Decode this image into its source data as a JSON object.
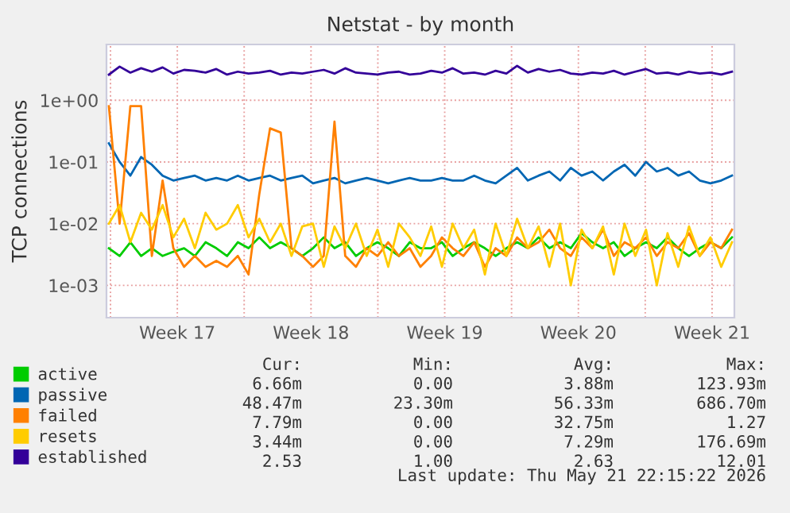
{
  "chart_data": {
    "type": "line",
    "title": "Netstat - by month",
    "ylabel": "TCP connections",
    "log": "y",
    "grid": true,
    "legend": "bottom",
    "marker": "none",
    "line_style": "solid",
    "x": [
      "2026-04-19T22:00",
      "2026-04-20T11:30",
      "2026-04-21T01:00",
      "2026-04-21T14:30",
      "2026-04-22T04:00",
      "2026-04-22T17:30",
      "2026-04-23T07:00",
      "2026-04-23T20:30",
      "2026-04-24T10:00",
      "2026-04-24T23:30",
      "2026-04-25T13:00",
      "2026-04-26T02:30",
      "2026-04-26T16:00",
      "2026-04-27T05:30",
      "2026-04-27T19:00",
      "2026-04-28T08:30",
      "2026-04-28T22:00",
      "2026-04-29T11:30",
      "2026-04-30T01:00",
      "2026-04-30T14:30",
      "2026-05-01T04:00",
      "2026-05-01T17:30",
      "2026-05-02T07:00",
      "2026-05-02T20:30",
      "2026-05-03T10:00",
      "2026-05-03T23:30",
      "2026-05-04T13:00",
      "2026-05-05T02:30",
      "2026-05-05T16:00",
      "2026-05-06T05:30",
      "2026-05-06T19:00",
      "2026-05-07T08:30",
      "2026-05-07T22:00",
      "2026-05-08T11:30",
      "2026-05-09T01:00",
      "2026-05-09T14:30",
      "2026-05-10T04:00",
      "2026-05-10T17:30",
      "2026-05-11T07:00",
      "2026-05-11T20:30",
      "2026-05-12T10:00",
      "2026-05-12T23:30",
      "2026-05-13T13:00",
      "2026-05-14T02:30",
      "2026-05-14T16:00",
      "2026-05-15T05:30",
      "2026-05-15T19:00",
      "2026-05-16T08:30",
      "2026-05-16T22:00",
      "2026-05-17T11:30",
      "2026-05-18T01:00",
      "2026-05-18T14:30",
      "2026-05-19T04:00",
      "2026-05-19T17:30",
      "2026-05-20T07:00",
      "2026-05-20T20:30",
      "2026-05-21T10:00",
      "2026-05-21T23:30",
      "2026-05-22T13:00"
    ],
    "xlim": [
      "2026-04-19T19:00",
      "2026-05-22T16:00"
    ],
    "xticks": [
      {
        "value": "2026-04-20",
        "label": null
      },
      {
        "value": "2026-04-23T12:00",
        "label": "Week 17"
      },
      {
        "value": "2026-04-27",
        "label": null
      },
      {
        "value": "2026-04-30T12:00",
        "label": "Week 18"
      },
      {
        "value": "2026-05-04",
        "label": null
      },
      {
        "value": "2026-05-07T12:00",
        "label": "Week 19"
      },
      {
        "value": "2026-05-11",
        "label": null
      },
      {
        "value": "2026-05-14T12:00",
        "label": "Week 20"
      },
      {
        "value": "2026-05-18",
        "label": null
      },
      {
        "value": "2026-05-21T12:00",
        "label": "Week 21"
      }
    ],
    "ylim": [
      0.0003,
      8
    ],
    "yticks": [
      {
        "value": 0.001,
        "label": "1e-03"
      },
      {
        "value": 0.01,
        "label": "1e-02"
      },
      {
        "value": 0.1,
        "label": "1e-01"
      },
      {
        "value": 1,
        "label": "1e+00"
      }
    ],
    "series": [
      {
        "name": "active",
        "color": "#00cc00",
        "values": [
          0.004,
          0.003,
          0.005,
          0.003,
          0.004,
          0.003,
          0.0035,
          0.004,
          0.003,
          0.005,
          0.004,
          0.003,
          0.005,
          0.004,
          0.006,
          0.004,
          0.005,
          0.004,
          0.003,
          0.004,
          0.006,
          0.004,
          0.005,
          0.003,
          0.004,
          0.005,
          0.004,
          0.003,
          0.005,
          0.004,
          0.004,
          0.005,
          0.003,
          0.004,
          0.005,
          0.004,
          0.003,
          0.004,
          0.005,
          0.004,
          0.006,
          0.004,
          0.005,
          0.004,
          0.007,
          0.005,
          0.004,
          0.005,
          0.003,
          0.004,
          0.005,
          0.004,
          0.006,
          0.004,
          0.003,
          0.004,
          0.005,
          0.004,
          0.006
        ]
      },
      {
        "name": "passive",
        "color": "#0066b3",
        "values": [
          0.2,
          0.1,
          0.06,
          0.12,
          0.09,
          0.06,
          0.05,
          0.055,
          0.06,
          0.05,
          0.055,
          0.05,
          0.06,
          0.05,
          0.055,
          0.06,
          0.05,
          0.055,
          0.06,
          0.045,
          0.05,
          0.055,
          0.045,
          0.05,
          0.055,
          0.05,
          0.045,
          0.05,
          0.055,
          0.05,
          0.05,
          0.055,
          0.05,
          0.05,
          0.06,
          0.05,
          0.045,
          0.06,
          0.08,
          0.05,
          0.06,
          0.07,
          0.05,
          0.08,
          0.06,
          0.07,
          0.05,
          0.07,
          0.09,
          0.06,
          0.1,
          0.07,
          0.08,
          0.06,
          0.07,
          0.05,
          0.045,
          0.05,
          0.06
        ]
      },
      {
        "name": "failed",
        "color": "#ff8000",
        "values": [
          0.8,
          0.01,
          0.8,
          0.8,
          0.003,
          0.05,
          0.004,
          0.002,
          0.003,
          0.002,
          0.0025,
          0.002,
          0.003,
          0.0015,
          0.03,
          0.35,
          0.3,
          0.004,
          0.003,
          0.002,
          0.003,
          0.45,
          0.003,
          0.002,
          0.004,
          0.003,
          0.005,
          0.003,
          0.004,
          0.002,
          0.003,
          0.006,
          0.004,
          0.003,
          0.005,
          0.002,
          0.004,
          0.003,
          0.006,
          0.004,
          0.005,
          0.008,
          0.004,
          0.003,
          0.006,
          0.004,
          0.008,
          0.003,
          0.005,
          0.004,
          0.006,
          0.003,
          0.005,
          0.004,
          0.007,
          0.003,
          0.005,
          0.004,
          0.008
        ]
      },
      {
        "name": "resets",
        "color": "#ffcc00",
        "values": [
          0.01,
          0.02,
          0.005,
          0.015,
          0.008,
          0.02,
          0.006,
          0.012,
          0.004,
          0.015,
          0.008,
          0.01,
          0.02,
          0.006,
          0.012,
          0.005,
          0.01,
          0.003,
          0.009,
          0.01,
          0.002,
          0.009,
          0.004,
          0.01,
          0.003,
          0.008,
          0.002,
          0.01,
          0.006,
          0.003,
          0.009,
          0.002,
          0.01,
          0.004,
          0.008,
          0.0015,
          0.01,
          0.003,
          0.012,
          0.004,
          0.009,
          0.002,
          0.01,
          0.001,
          0.008,
          0.004,
          0.009,
          0.0015,
          0.01,
          0.003,
          0.008,
          0.001,
          0.007,
          0.002,
          0.009,
          0.003,
          0.006,
          0.002,
          0.005
        ]
      },
      {
        "name": "established",
        "color": "#330099",
        "values": [
          2.6,
          3.5,
          2.8,
          3.3,
          2.9,
          3.4,
          2.7,
          3.1,
          3.0,
          2.8,
          3.2,
          2.6,
          2.9,
          2.7,
          2.8,
          3.0,
          2.6,
          2.8,
          2.7,
          2.9,
          3.1,
          2.7,
          3.3,
          2.8,
          2.7,
          2.6,
          2.8,
          2.9,
          2.6,
          2.7,
          3.0,
          2.8,
          3.3,
          2.7,
          2.8,
          2.6,
          3.0,
          2.7,
          3.6,
          2.8,
          3.2,
          2.9,
          3.1,
          2.7,
          2.6,
          2.8,
          2.7,
          3.0,
          2.6,
          2.9,
          3.2,
          2.7,
          2.8,
          2.6,
          2.9,
          2.7,
          2.8,
          2.6,
          2.9
        ]
      }
    ],
    "annotations": [
      "Cur:",
      "Min:",
      "Avg:",
      "Max:",
      "6.66m",
      "0.00",
      "3.88m",
      "123.93m",
      "48.47m",
      "23.30m",
      "56.33m",
      "686.70m",
      "7.79m",
      "0.00",
      "32.75m",
      "1.27",
      "3.44m",
      "0.00",
      "7.29m",
      "176.69m",
      "2.53",
      "1.00",
      "2.63",
      "12.01",
      "Last update: Thu May 21 22:15:22 2026"
    ]
  }
}
